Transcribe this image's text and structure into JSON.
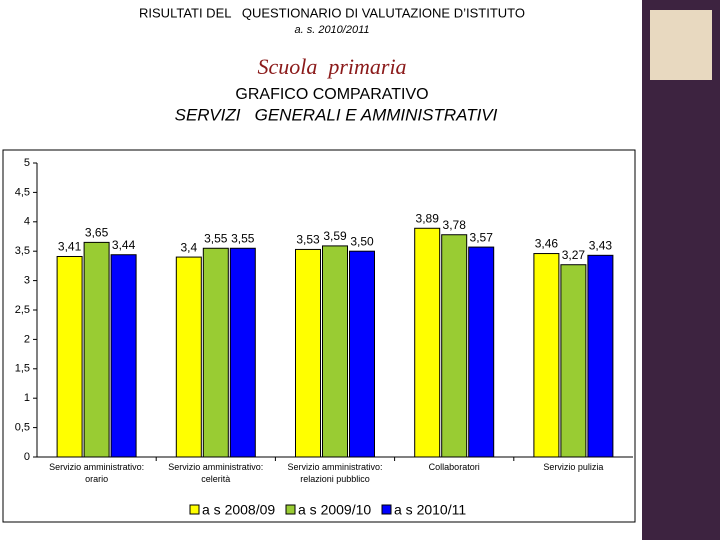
{
  "chart_data": {
    "type": "bar",
    "title": "RISULTATI DEL   QUESTIONARIO DI VALUTAZIONE D’ISTITUTO",
    "subtitle": "a. s. 2010/2011",
    "annotations": [
      "Scuola  primaria",
      "GRAFICO COMPARATIVO",
      "SERVIZI   GENERALI E AMMINISTRATIVI"
    ],
    "categories": [
      "Servizio amministrativo: orario",
      "Servizio amministrativo: celerità",
      "Servizio amministrativo: relazioni pubblico",
      "Collaboratori",
      "Servizio pulizia"
    ],
    "series": [
      {
        "name": "a s 2008/09",
        "color": "#ffff00",
        "values": [
          3.41,
          3.4,
          3.53,
          3.89,
          3.46
        ],
        "value_labels": [
          "3,41",
          "3,4",
          "3,53",
          "3,89",
          "3,46"
        ]
      },
      {
        "name": "a s 2009/10",
        "color": "#99cc33",
        "values": [
          3.65,
          3.55,
          3.59,
          3.78,
          3.27
        ],
        "value_labels": [
          "3,65",
          "3,55",
          "3,59",
          "3,78",
          "3,27"
        ]
      },
      {
        "name": "a s 2010/11",
        "color": "#0000ff",
        "values": [
          3.44,
          3.55,
          3.5,
          3.57,
          3.43
        ],
        "value_labels": [
          "3,44",
          "3,55",
          "3,50",
          "3,57",
          "3,43"
        ]
      }
    ],
    "ylim": [
      0,
      5
    ],
    "yticks": [
      0,
      {
        "value": 0.5,
        "label": "0,5"
      },
      1,
      {
        "value": 1.5,
        "label": "1,5"
      },
      2,
      {
        "value": 2.5,
        "label": "2,5"
      },
      3,
      {
        "value": 3.5,
        "label": "3,5"
      },
      4,
      {
        "value": 4.5,
        "label": "4,5"
      },
      5
    ],
    "grid": false
  }
}
